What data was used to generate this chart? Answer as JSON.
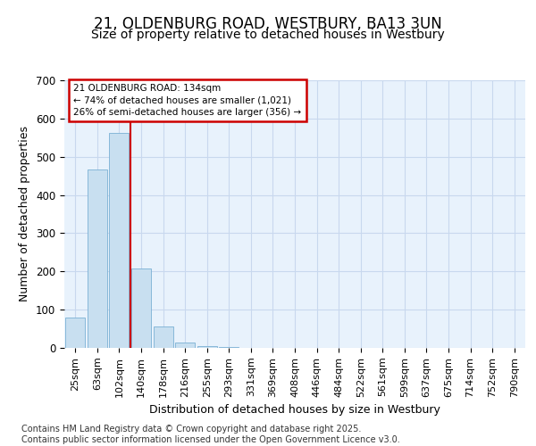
{
  "title": "21, OLDENBURG ROAD, WESTBURY, BA13 3UN",
  "subtitle": "Size of property relative to detached houses in Westbury",
  "xlabel": "Distribution of detached houses by size in Westbury",
  "ylabel": "Number of detached properties",
  "categories": [
    "25sqm",
    "63sqm",
    "102sqm",
    "140sqm",
    "178sqm",
    "216sqm",
    "255sqm",
    "293sqm",
    "331sqm",
    "369sqm",
    "408sqm",
    "446sqm",
    "484sqm",
    "522sqm",
    "561sqm",
    "599sqm",
    "637sqm",
    "675sqm",
    "714sqm",
    "752sqm",
    "790sqm"
  ],
  "values": [
    80,
    467,
    562,
    207,
    57,
    15,
    5,
    2,
    0,
    1,
    0,
    0,
    0,
    0,
    0,
    0,
    0,
    0,
    0,
    0,
    0
  ],
  "bar_color": "#c8dff0",
  "bar_edge_color": "#7ab0d4",
  "vline_index": 3,
  "vline_color": "#cc0000",
  "ylim": [
    0,
    700
  ],
  "yticks": [
    0,
    100,
    200,
    300,
    400,
    500,
    600,
    700
  ],
  "annotation_box_text": "21 OLDENBURG ROAD: 134sqm\n← 74% of detached houses are smaller (1,021)\n26% of semi-detached houses are larger (356) →",
  "annotation_box_color": "#cc0000",
  "annotation_box_bg": "#ffffff",
  "grid_color": "#c8d8ee",
  "bg_color": "#e8f2fc",
  "plot_bg": "#ffffff",
  "footer_text": "Contains HM Land Registry data © Crown copyright and database right 2025.\nContains public sector information licensed under the Open Government Licence v3.0.",
  "title_fontsize": 12,
  "subtitle_fontsize": 10,
  "tick_fontsize": 8,
  "ylabel_fontsize": 9,
  "xlabel_fontsize": 9,
  "footer_fontsize": 7
}
